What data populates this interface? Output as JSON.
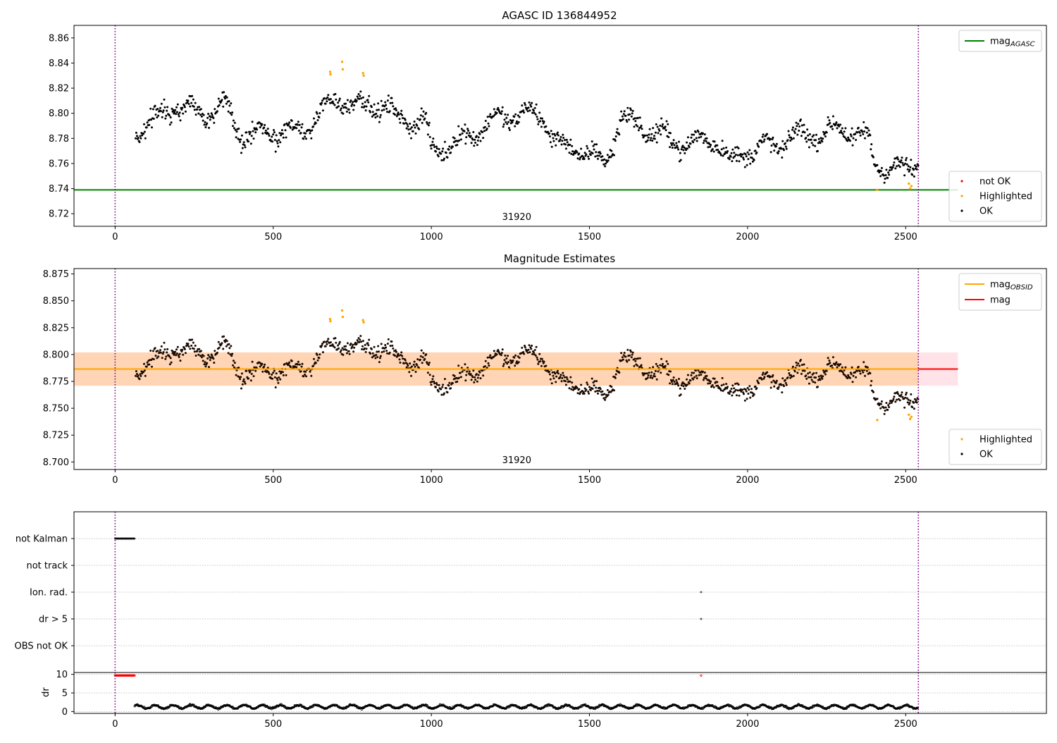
{
  "chart_data": [
    {
      "type": "scatter",
      "title": "AGASC ID 136844952",
      "xlim": [
        -130,
        2945
      ],
      "ylim": [
        8.71,
        8.87
      ],
      "yticks": [
        8.72,
        8.74,
        8.76,
        8.78,
        8.8,
        8.82,
        8.84,
        8.86
      ],
      "xticks": [
        0,
        500,
        1000,
        1500,
        2000,
        2500
      ],
      "ytick_format": 2,
      "grid": false,
      "vlines": [
        0,
        2540
      ],
      "obsid_label": {
        "text": "31920",
        "x": 1270
      },
      "hline": {
        "name": "mag",
        "sub": "AGASC",
        "y": 8.739,
        "x_range": [
          -130,
          2665
        ],
        "color": "#008000"
      },
      "legend_lines": [
        {
          "name": "mag",
          "sub": "AGASC",
          "color": "#008000"
        }
      ],
      "legend_points_top": "top-right",
      "legend_points": [
        {
          "name": "not OK",
          "color": "#ff0000"
        },
        {
          "name": "Highlighted",
          "color": "#ffa500"
        },
        {
          "name": "OK",
          "color": "#000000"
        }
      ],
      "legend_points_placement": "lower-right",
      "series": [
        {
          "name": "OK",
          "x_range": [
            65,
            2540
          ],
          "color": "#000000",
          "trend_x": [
            65,
            150,
            200,
            300,
            350,
            400,
            500,
            600,
            650,
            700,
            750,
            800,
            850,
            900,
            950,
            980,
            1000,
            1100,
            1200,
            1300,
            1350,
            1400,
            1500,
            1550,
            1600,
            1700,
            1800,
            1900,
            1950,
            2000,
            2100,
            2150,
            2200,
            2300,
            2380,
            2400,
            2500,
            2540
          ],
          "trend_y": [
            8.786,
            8.8,
            8.806,
            8.8,
            8.806,
            8.782,
            8.784,
            8.787,
            8.8,
            8.812,
            8.808,
            8.806,
            8.806,
            8.795,
            8.794,
            8.794,
            8.77,
            8.779,
            8.795,
            8.8,
            8.798,
            8.775,
            8.768,
            8.76,
            8.797,
            8.785,
            8.775,
            8.78,
            8.76,
            8.771,
            8.775,
            8.783,
            8.782,
            8.788,
            8.78,
            8.76,
            8.754,
            8.762
          ],
          "spread": 0.008
        },
        {
          "name": "Highlighted",
          "color": "#ffa500",
          "x": [
            680,
            681,
            718,
            720,
            784,
            786,
            2410,
            2510,
            2514,
            2518
          ],
          "y": [
            8.833,
            8.831,
            8.841,
            8.835,
            8.832,
            8.83,
            8.739,
            8.744,
            8.74,
            8.742
          ]
        }
      ]
    },
    {
      "type": "scatter",
      "title": "Magnitude Estimates",
      "xlim": [
        -130,
        2945
      ],
      "ylim": [
        8.693,
        8.88
      ],
      "yticks": [
        8.7,
        8.725,
        8.75,
        8.775,
        8.8,
        8.825,
        8.85,
        8.875
      ],
      "xticks": [
        0,
        500,
        1000,
        1500,
        2000,
        2500
      ],
      "ytick_format": 3,
      "grid": false,
      "vlines": [
        0,
        2540
      ],
      "obsid_label": {
        "text": "31920",
        "x": 1270
      },
      "bands": [
        {
          "x_range": [
            -130,
            2665
          ],
          "y_range": [
            8.771,
            8.802
          ],
          "color": "#ffc0cb",
          "opacity": 0.45
        },
        {
          "x_range": [
            -130,
            2540
          ],
          "y_range": [
            8.771,
            8.802
          ],
          "color": "#ffa500",
          "opacity": 0.22
        }
      ],
      "hlines": [
        {
          "name": "mag",
          "y": 8.7865,
          "x_range": [
            -130,
            2665
          ],
          "color": "#ff0000"
        },
        {
          "name": "mag",
          "sub": "OBSID",
          "y": 8.7865,
          "x_range": [
            -130,
            2540
          ],
          "color": "#ffa500"
        }
      ],
      "legend_lines": [
        {
          "name": "mag",
          "sub": "OBSID",
          "color": "#ffa500"
        },
        {
          "name": "mag",
          "color": "#ff0000"
        }
      ],
      "legend_points": [
        {
          "name": "Highlighted",
          "color": "#ffa500"
        },
        {
          "name": "OK",
          "color": "#000000"
        }
      ],
      "legend_points_placement": "lower-right",
      "series_ref": 0
    },
    {
      "type": "scatter",
      "title": "",
      "xlim": [
        -130,
        2945
      ],
      "xticks": [],
      "flag_labels": [
        "not Kalman",
        "not track",
        "Ion. rad.",
        "dr > 5",
        "OBS not OK"
      ],
      "grid": "horizontal-dotted",
      "vlines": [
        0,
        2540
      ],
      "flags": [
        {
          "label": "not Kalman",
          "x_range": [
            0,
            62
          ],
          "color": "#000000"
        },
        {
          "label": "Ion. rad.",
          "x": [
            1853
          ],
          "color": "#000000"
        },
        {
          "label": "dr > 5",
          "x": [
            1853
          ],
          "color": "#000000"
        }
      ]
    },
    {
      "type": "scatter",
      "title": "",
      "ylabel": "dr",
      "xlim": [
        -130,
        2945
      ],
      "ylim": [
        -0.5,
        10.5
      ],
      "yticks": [
        0,
        5,
        10
      ],
      "xticks": [
        0,
        500,
        1000,
        1500,
        2000,
        2500
      ],
      "ytick_format": 0,
      "grid": "horizontal-dotted",
      "vlines": [
        0,
        2540
      ],
      "series": [
        {
          "name": "dr",
          "color": "#000000",
          "x_range": [
            62,
            2540
          ],
          "mean": 1.3,
          "spread": 0.55
        },
        {
          "name": "dr capped",
          "color": "#ff0000",
          "x_range": [
            0,
            62
          ],
          "y": 9.7
        },
        {
          "name": "dr capped point",
          "color": "#ff0000",
          "x": [
            1853
          ],
          "y": [
            9.7
          ]
        }
      ]
    }
  ]
}
